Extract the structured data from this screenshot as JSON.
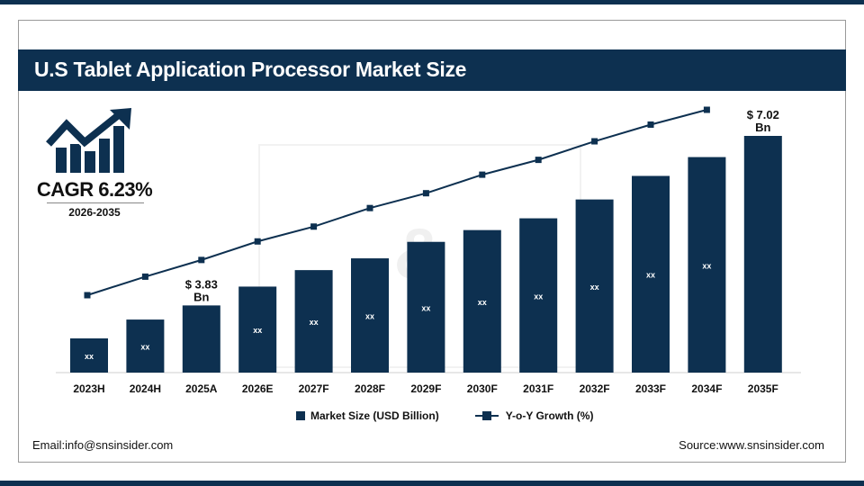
{
  "header": {
    "title": "U.S Tablet Application Processor Market Size"
  },
  "cagr": {
    "label": "CAGR 6.23%",
    "period": "2026-2035",
    "icon": "bar-chart-growth-arrow-icon"
  },
  "footer": {
    "email": "Email:info@snsinsider.com",
    "source": "Source:www.snsinsider.com"
  },
  "colors": {
    "primary": "#0d3050",
    "bar_label": "#ffffff"
  },
  "chart_data": {
    "type": "bar",
    "categories": [
      "2023H",
      "2024H",
      "2025A",
      "2026E",
      "2027F",
      "2028F",
      "2029F",
      "2030F",
      "2031F",
      "2032F",
      "2033F",
      "2034F",
      "2035F"
    ],
    "series": [
      {
        "name": "Market Size (USD Billion)",
        "type": "bar",
        "data_labels": [
          "xx",
          "xx",
          "$ 3.83 Bn",
          "xx",
          "xx",
          "xx",
          "xx",
          "xx",
          "xx",
          "xx",
          "xx",
          "xx",
          "$ 7.02 Bn"
        ],
        "relative_level": [
          0.14,
          0.22,
          0.28,
          0.36,
          0.43,
          0.48,
          0.55,
          0.6,
          0.65,
          0.73,
          0.83,
          0.91,
          1.0
        ]
      },
      {
        "name": "Y-o-Y Growth (%)",
        "type": "line",
        "relative_level": [
          0.0,
          0.1,
          0.19,
          0.29,
          0.37,
          0.47,
          0.55,
          0.65,
          0.73,
          0.83,
          0.92,
          1.0,
          null
        ]
      }
    ],
    "legend": "bottom",
    "grid": false
  }
}
